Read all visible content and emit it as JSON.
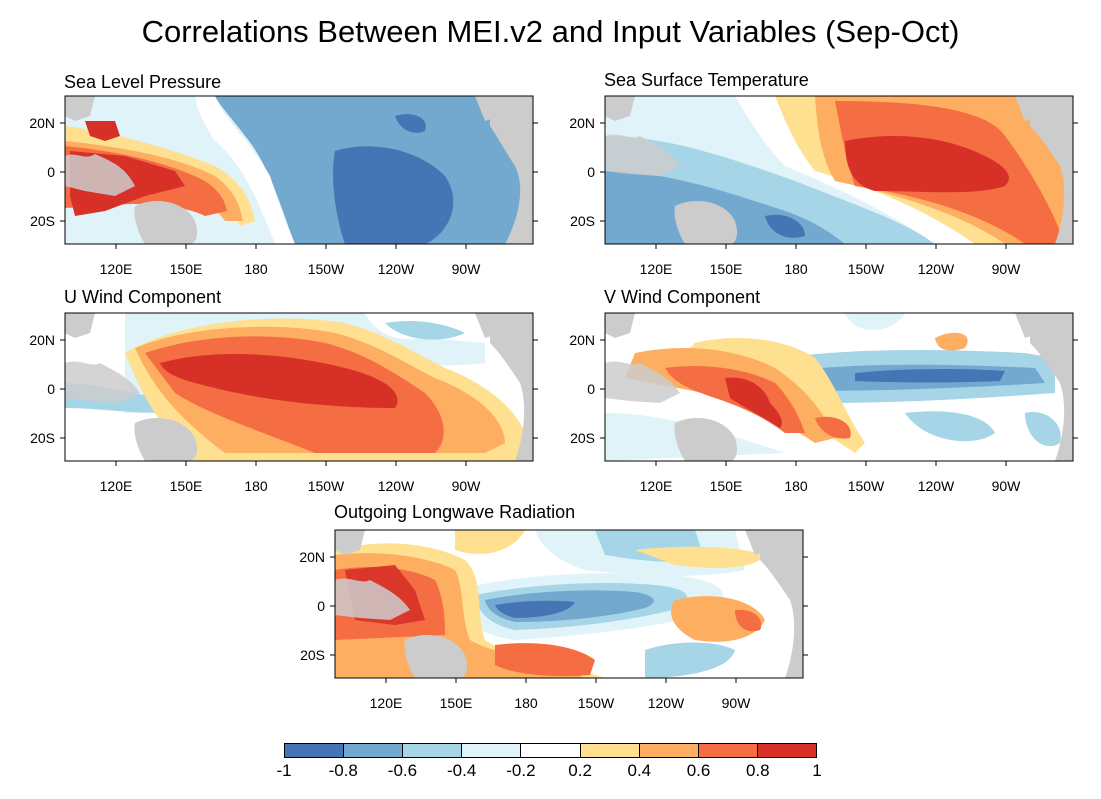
{
  "title": "Correlations Between MEI.v2 and Input Variables (Sep-Oct)",
  "panels": [
    {
      "title": "Sea Level Pressure"
    },
    {
      "title": "Sea Surface Temperature"
    },
    {
      "title": "U Wind Component"
    },
    {
      "title": "V Wind Component"
    },
    {
      "title": "Outgoing Longwave Radiation"
    }
  ],
  "lon_labels": [
    "120E",
    "150E",
    "180",
    "150W",
    "120W",
    "90W"
  ],
  "lat_labels": [
    "20N",
    "0",
    "20S"
  ],
  "colorbar": {
    "colors": [
      "#4575b4",
      "#74a9cf",
      "#a6d5e8",
      "#e0f3f8",
      "#ffffff",
      "#fee090",
      "#fdae61",
      "#f46d43",
      "#d73027"
    ],
    "labels": [
      "-1",
      "-0.8",
      "-0.6",
      "-0.4",
      "-0.2",
      "0.2",
      "0.4",
      "0.6",
      "0.8",
      "1"
    ]
  }
}
